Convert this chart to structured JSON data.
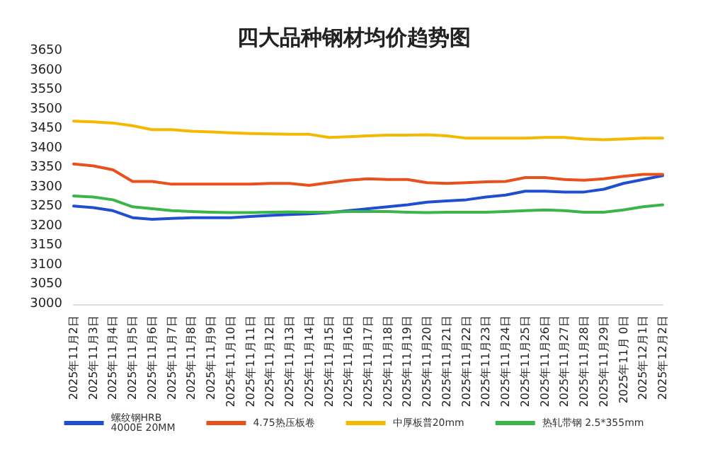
{
  "chart_data": {
    "type": "line",
    "title": "四大品种钢材均价趋势图",
    "categories": [
      "2025年11月2日",
      "2025年11月3日",
      "2025年11月4日",
      "2025年11月5日",
      "2025年11月6日",
      "2025年11月7日",
      "2025年11月8日",
      "2025年11月9日",
      "2025年11月10日",
      "2025年11月11日",
      "2025年11月12日",
      "2025年11月13日",
      "2025年11月14日",
      "2025年11月15日",
      "2025年11月16日",
      "2025年11月17日",
      "2025年11月18日",
      "2025年11月19日",
      "2025年11月20日",
      "2025年11月21日",
      "2025年11月22日",
      "2025年11月23日",
      "2025年11月24日",
      "2025年11月25日",
      "2025年11月26日",
      "2025年11月27日",
      "2025年11月28日",
      "2025年11月29日",
      "2025年11月 0日",
      "2025年12月1日",
      "2025年12月2日"
    ],
    "series": [
      {
        "name": "螺纹钢HRB\n4000E 20MM",
        "color": "#1f4fd0",
        "values": [
          3252,
          3248,
          3240,
          3222,
          3218,
          3220,
          3222,
          3222,
          3222,
          3225,
          3228,
          3230,
          3232,
          3235,
          3240,
          3245,
          3250,
          3255,
          3262,
          3265,
          3268,
          3275,
          3280,
          3290,
          3290,
          3288,
          3288,
          3295,
          3310,
          3320,
          3330
        ]
      },
      {
        "name": "4.75热压板卷",
        "color": "#e8501e",
        "values": [
          3360,
          3355,
          3345,
          3315,
          3315,
          3308,
          3308,
          3308,
          3308,
          3308,
          3310,
          3310,
          3305,
          3312,
          3318,
          3322,
          3320,
          3320,
          3312,
          3310,
          3312,
          3314,
          3315,
          3325,
          3325,
          3320,
          3318,
          3322,
          3328,
          3333,
          3333
        ]
      },
      {
        "name": "中厚板普20mm",
        "color": "#f5b800",
        "values": [
          3470,
          3468,
          3465,
          3458,
          3448,
          3448,
          3444,
          3442,
          3440,
          3438,
          3437,
          3436,
          3436,
          3428,
          3430,
          3432,
          3434,
          3434,
          3435,
          3432,
          3426,
          3426,
          3426,
          3426,
          3428,
          3428,
          3424,
          3422,
          3424,
          3426,
          3426
        ]
      },
      {
        "name": "热轧带钢 2.5*355mm",
        "color": "#3bb54a",
        "values": [
          3278,
          3275,
          3268,
          3250,
          3245,
          3240,
          3238,
          3236,
          3235,
          3235,
          3236,
          3237,
          3236,
          3236,
          3238,
          3238,
          3238,
          3236,
          3235,
          3236,
          3236,
          3236,
          3238,
          3240,
          3242,
          3240,
          3236,
          3236,
          3242,
          3250,
          3255
        ]
      }
    ],
    "ylim": [
      3000,
      3650
    ],
    "yticks": [
      3000,
      3050,
      3100,
      3150,
      3200,
      3250,
      3300,
      3350,
      3400,
      3450,
      3500,
      3550,
      3600,
      3650
    ],
    "grid": false,
    "legend": "bottom",
    "marker": "none",
    "line_style": "solid"
  }
}
